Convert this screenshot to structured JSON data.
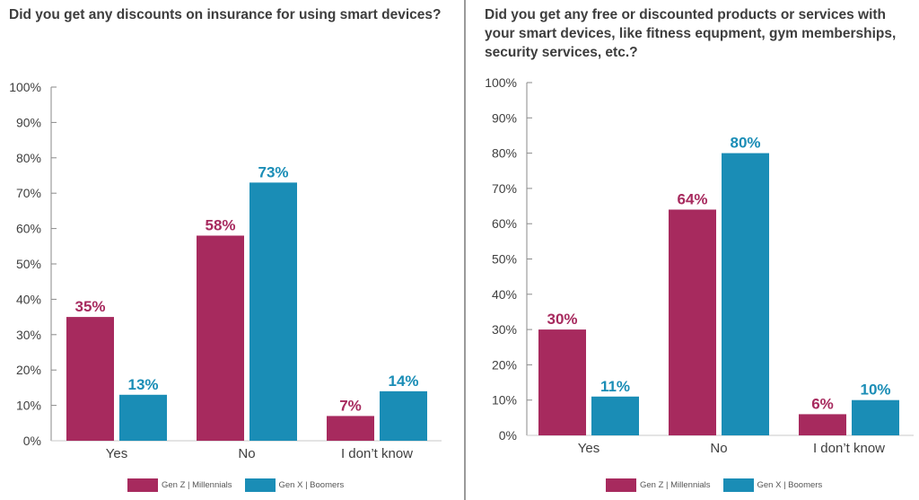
{
  "chart_data": [
    {
      "type": "bar",
      "title": "Did you get any discounts on insurance for using smart devices?",
      "categories": [
        "Yes",
        "No",
        "I don’t know"
      ],
      "series": [
        {
          "name": "Gen Z | Millennials",
          "values": [
            35,
            58,
            7
          ],
          "labels": [
            "35%",
            "58%",
            "7%"
          ],
          "color": "#a72a5e"
        },
        {
          "name": "Gen X | Boomers",
          "values": [
            13,
            73,
            14
          ],
          "labels": [
            "13%",
            "73%",
            "14%"
          ],
          "color": "#1a8db6"
        }
      ],
      "yticks": [
        "0%",
        "10%",
        "20%",
        "30%",
        "40%",
        "50%",
        "60%",
        "70%",
        "80%",
        "90%",
        "100%"
      ],
      "ylim": [
        0,
        100
      ],
      "xlabel": "",
      "ylabel": "",
      "grid": false,
      "legend_position": "bottom"
    },
    {
      "type": "bar",
      "title": "Did you get any free or discounted products or services with your smart devices, like fitness equpment, gym memberships, security services, etc.?",
      "categories": [
        "Yes",
        "No",
        "I don’t know"
      ],
      "series": [
        {
          "name": "Gen Z | Millennials",
          "values": [
            30,
            64,
            6
          ],
          "labels": [
            "30%",
            "64%",
            "6%"
          ],
          "color": "#a72a5e"
        },
        {
          "name": "Gen X | Boomers",
          "values": [
            11,
            80,
            10
          ],
          "labels": [
            "11%",
            "80%",
            "10%"
          ],
          "color": "#1a8db6"
        }
      ],
      "yticks": [
        "0%",
        "10%",
        "20%",
        "30%",
        "40%",
        "50%",
        "60%",
        "70%",
        "80%",
        "90%",
        "100%"
      ],
      "ylim": [
        0,
        100
      ],
      "xlabel": "",
      "ylabel": "",
      "grid": false,
      "legend_position": "bottom"
    }
  ]
}
